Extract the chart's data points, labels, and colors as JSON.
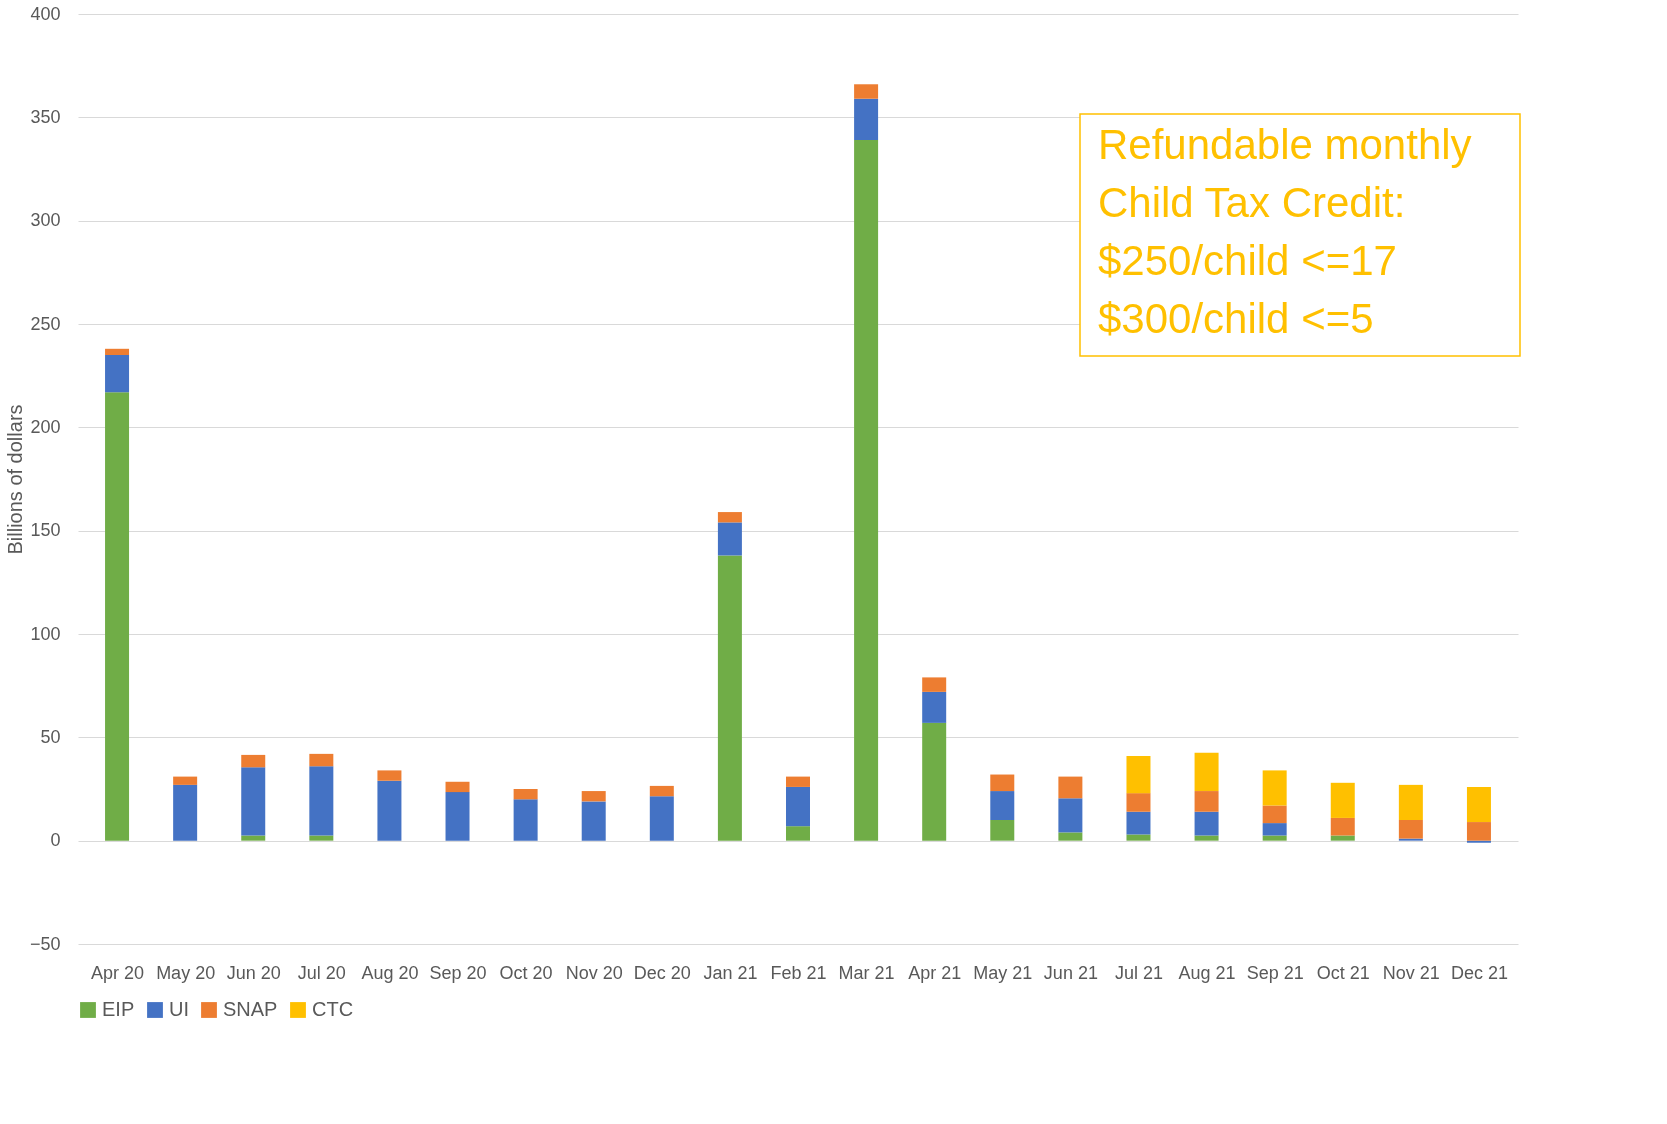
{
  "chart_data": {
    "type": "bar",
    "stacked": true,
    "ylabel": "Billions of dollars",
    "categories": [
      "Apr 20",
      "May 20",
      "Jun 20",
      "Jul 20",
      "Aug 20",
      "Sep 20",
      "Oct 20",
      "Nov 20",
      "Dec 20",
      "Jan 21",
      "Feb 21",
      "Mar 21",
      "Apr 21",
      "May 21",
      "Jun 21",
      "Jul 21",
      "Aug 21",
      "Sep 21",
      "Oct 21",
      "Nov 21",
      "Dec 21"
    ],
    "series": [
      {
        "name": "EIP",
        "color": "#70ad47",
        "values": [
          217,
          0,
          2.5,
          2.5,
          0,
          0,
          0,
          0,
          0,
          138,
          7,
          339,
          57,
          10,
          4,
          3,
          2.5,
          2.5,
          2.5,
          0,
          0
        ]
      },
      {
        "name": "UI",
        "color": "#4472c4",
        "values": [
          18,
          27,
          33,
          33.5,
          29,
          23.5,
          20,
          19,
          21.5,
          16,
          19,
          20,
          15,
          14,
          16.5,
          11,
          11.5,
          6,
          0,
          1,
          -1
        ]
      },
      {
        "name": "SNAP",
        "color": "#ed7d31",
        "values": [
          3,
          4,
          6,
          6,
          5,
          5,
          5,
          5,
          5,
          5,
          5,
          7,
          7,
          8,
          10.5,
          9,
          10,
          8.5,
          8.5,
          9,
          9
        ]
      },
      {
        "name": "CTC",
        "color": "#ffc000",
        "values": [
          0,
          0,
          0,
          0,
          0,
          0,
          0,
          0,
          0,
          0,
          0,
          0,
          0,
          0,
          0,
          18,
          18.5,
          17,
          17,
          17,
          17
        ]
      }
    ],
    "ylim": [
      -50,
      400
    ],
    "yticks": [
      -50,
      0,
      50,
      100,
      150,
      200,
      250,
      300,
      350,
      400
    ],
    "grid": "y",
    "legend": "bottom",
    "annotations": [
      "Refundable monthly\nChild Tax Credit:\n$250/child <=17\n$300/child <=5"
    ]
  }
}
